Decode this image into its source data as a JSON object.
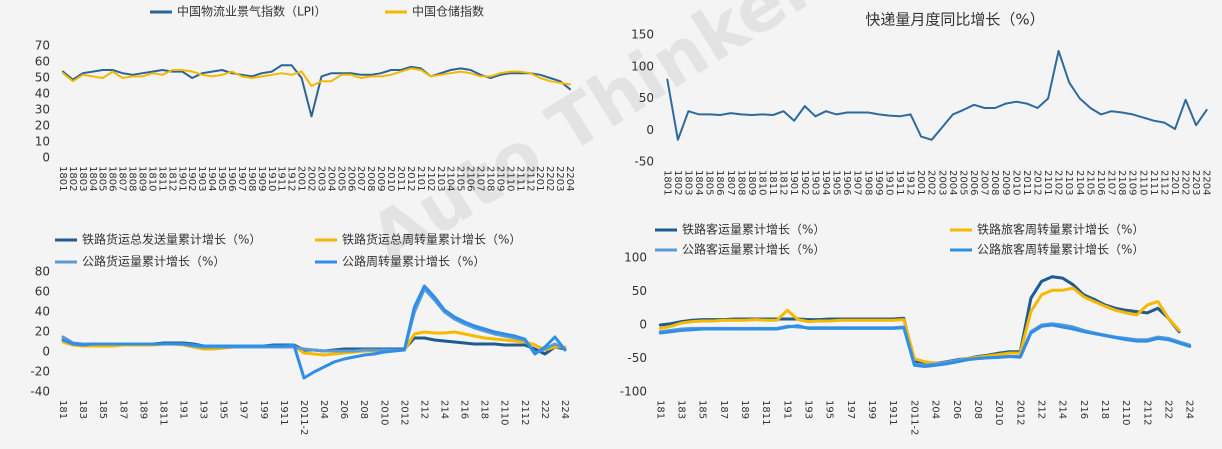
{
  "watermark": "Auto Thinker 汽车智库",
  "chart_data": [
    {
      "type": "line",
      "categories": [
        "1801",
        "1802",
        "1803",
        "1804",
        "1805",
        "1806",
        "1807",
        "1808",
        "1809",
        "1810",
        "1811",
        "1812",
        "1901",
        "1902",
        "1903",
        "1904",
        "1905",
        "1906",
        "1907",
        "1908",
        "1909",
        "1910",
        "1911",
        "1912",
        "2001",
        "2002",
        "2003",
        "2004",
        "2005",
        "2006",
        "2007",
        "2008",
        "2009",
        "2010",
        "2011",
        "2012",
        "2101",
        "2102",
        "2103",
        "2104",
        "2105",
        "2106",
        "2107",
        "2108",
        "2109",
        "2110",
        "2111",
        "2112",
        "2201",
        "2202",
        "2203",
        "2204"
      ],
      "series": [
        {
          "name": "中国物流业景气指数（LPI）",
          "color": "#2a6596",
          "values": [
            54,
            49,
            53,
            54,
            55,
            55,
            53,
            52,
            53,
            54,
            55,
            54,
            54,
            50,
            53,
            54,
            55,
            53,
            52,
            51,
            53,
            54,
            58,
            58,
            50,
            26,
            51,
            53,
            53,
            53,
            52,
            52,
            53,
            55,
            55,
            57,
            56,
            51,
            53,
            55,
            56,
            55,
            52,
            50,
            52,
            53,
            53,
            53,
            52,
            50,
            48,
            43
          ]
        },
        {
          "name": "中国仓储指数",
          "color": "#f5b800",
          "values": [
            53,
            48,
            52,
            51,
            50,
            54,
            50,
            51,
            51,
            53,
            52,
            55,
            55,
            54,
            52,
            51,
            52,
            54,
            51,
            50,
            51,
            52,
            53,
            52,
            54,
            45,
            48,
            48,
            52,
            52,
            50,
            51,
            51,
            52,
            54,
            56,
            55,
            51,
            52,
            53,
            54,
            53,
            51,
            51,
            53,
            54,
            54,
            53,
            50,
            48,
            47,
            46
          ]
        }
      ],
      "ylim": [
        0,
        70
      ],
      "yticks": [
        0,
        10,
        20,
        30,
        40,
        50,
        60,
        70
      ],
      "grid": false
    },
    {
      "type": "line",
      "title": "快递量月度同比增长（%）",
      "categories": [
        "1801",
        "1802",
        "1803",
        "1804",
        "1805",
        "1806",
        "1807",
        "1808",
        "1809",
        "1810",
        "1811",
        "1812",
        "1901",
        "1902",
        "1903",
        "1904",
        "1905",
        "1906",
        "1907",
        "1908",
        "1909",
        "1910",
        "1911",
        "1912",
        "2001",
        "2002",
        "2003",
        "2004",
        "2005",
        "2006",
        "2007",
        "2008",
        "2009",
        "2010",
        "2011",
        "2012",
        "2101",
        "2102",
        "2103",
        "2104",
        "2105",
        "2106",
        "2107",
        "2108",
        "2109",
        "2110",
        "2111",
        "2112",
        "2201",
        "2202",
        "2203",
        "2204"
      ],
      "series": [
        {
          "name": null,
          "color": "#2e6a9e",
          "values": [
            80,
            -15,
            30,
            25,
            25,
            24,
            27,
            25,
            24,
            25,
            24,
            30,
            15,
            38,
            22,
            30,
            25,
            28,
            28,
            28,
            25,
            23,
            22,
            25,
            -10,
            -15,
            5,
            25,
            32,
            40,
            35,
            35,
            42,
            45,
            42,
            35,
            50,
            125,
            75,
            50,
            35,
            25,
            30,
            28,
            25,
            20,
            15,
            12,
            2,
            48,
            8,
            32
          ]
        }
      ],
      "ylim": [
        -50,
        150
      ],
      "yticks": [
        -50,
        0,
        50,
        100,
        150
      ],
      "grid": false
    },
    {
      "type": "line",
      "categories": [
        "181",
        null,
        "183",
        null,
        "185",
        null,
        "187",
        null,
        "189",
        null,
        "1811",
        null,
        "191",
        null,
        "193",
        null,
        "195",
        null,
        "197",
        null,
        "199",
        null,
        "1911",
        null,
        "2011-2",
        null,
        "204",
        null,
        "206",
        null,
        "208",
        null,
        "2010",
        null,
        "2012",
        null,
        "212",
        null,
        "214",
        null,
        "216",
        null,
        "218",
        null,
        "2110",
        null,
        "2112",
        null,
        "222",
        null,
        "224"
      ],
      "series": [
        {
          "name": "铁路货运总发送量累计增长（%）",
          "color": "#1f5b8e",
          "values": [
            12,
            8,
            7,
            7,
            7,
            7,
            8,
            8,
            8,
            8,
            9,
            9,
            9,
            8,
            6,
            6,
            6,
            6,
            6,
            6,
            6,
            7,
            7,
            7,
            2,
            2,
            1,
            2,
            3,
            3,
            3,
            3,
            3,
            3,
            3,
            14,
            14,
            12,
            11,
            10,
            9,
            8,
            8,
            8,
            7,
            7,
            7,
            3,
            -2,
            5,
            3
          ]
        },
        {
          "name": "铁路货运总周转量累计增长（%）",
          "color": "#f7b900",
          "values": [
            10,
            7,
            6,
            6,
            6,
            6,
            7,
            7,
            7,
            7,
            8,
            8,
            7,
            5,
            3,
            3,
            4,
            5,
            5,
            5,
            5,
            6,
            6,
            6,
            -1,
            -2,
            -3,
            -2,
            -1,
            0,
            1,
            1,
            1,
            2,
            2,
            18,
            20,
            19,
            19,
            20,
            18,
            16,
            14,
            13,
            12,
            11,
            10,
            7,
            2,
            5,
            5
          ]
        },
        {
          "name": "公路货运量累计增长（%）",
          "color": "#5b9bd5",
          "values": [
            15,
            9,
            8,
            8,
            8,
            8,
            8,
            8,
            8,
            8,
            8,
            8,
            8,
            6,
            5,
            5,
            5,
            5,
            5,
            5,
            5,
            5,
            5,
            5,
            3,
            2,
            1,
            1,
            1,
            1,
            2,
            2,
            2,
            2,
            2,
            40,
            63,
            52,
            40,
            33,
            28,
            24,
            21,
            18,
            16,
            14,
            12,
            -1,
            3,
            8,
            3
          ]
        },
        {
          "name": "公路周转量累计增长（%）",
          "color": "#2f8fe8",
          "values": [
            12,
            8,
            7,
            8,
            8,
            8,
            8,
            8,
            8,
            8,
            8,
            8,
            8,
            7,
            6,
            6,
            6,
            6,
            6,
            6,
            6,
            6,
            6,
            7,
            -26,
            -20,
            -15,
            -10,
            -7,
            -5,
            -3,
            -2,
            0,
            1,
            2,
            45,
            66,
            55,
            42,
            35,
            30,
            26,
            23,
            20,
            18,
            16,
            13,
            -2,
            5,
            15,
            2
          ]
        }
      ],
      "ylim": [
        -40,
        80
      ],
      "yticks": [
        -40,
        -20,
        0,
        20,
        40,
        60,
        80
      ],
      "grid": false
    },
    {
      "type": "line",
      "categories": [
        "181",
        null,
        "183",
        null,
        "185",
        null,
        "187",
        null,
        "189",
        null,
        "1811",
        null,
        "191",
        null,
        "193",
        null,
        "195",
        null,
        "197",
        null,
        "199",
        null,
        "1911",
        null,
        "2011-2",
        null,
        "204",
        null,
        "206",
        null,
        "208",
        null,
        "2010",
        null,
        "2012",
        null,
        "212",
        null,
        "214",
        null,
        "216",
        null,
        "218",
        null,
        "2110",
        null,
        "2112",
        null,
        "222",
        null,
        "224"
      ],
      "series": [
        {
          "name": "铁路客运量累计增长（%）",
          "color": "#1f5b8e",
          "values": [
            0,
            2,
            5,
            7,
            8,
            8,
            8,
            9,
            9,
            9,
            9,
            9,
            9,
            9,
            8,
            8,
            9,
            9,
            9,
            9,
            9,
            9,
            9,
            10,
            -55,
            -58,
            -57,
            -55,
            -52,
            -50,
            -47,
            -45,
            -42,
            -40,
            -40,
            40,
            65,
            72,
            70,
            60,
            45,
            38,
            30,
            25,
            22,
            20,
            18,
            25,
            10,
            -10,
            null
          ]
        },
        {
          "name": "铁路旅客周转量累计增长（%）",
          "color": "#f7b900",
          "values": [
            -5,
            -2,
            3,
            5,
            6,
            6,
            7,
            7,
            7,
            8,
            7,
            7,
            22,
            8,
            5,
            6,
            6,
            7,
            7,
            7,
            7,
            7,
            7,
            8,
            -50,
            -55,
            -57,
            -56,
            -53,
            -50,
            -48,
            -46,
            -44,
            -42,
            -42,
            20,
            45,
            52,
            52,
            55,
            42,
            35,
            28,
            22,
            18,
            15,
            30,
            35,
            10,
            -8,
            null
          ]
        },
        {
          "name": "公路客运量累计增长（%）",
          "color": "#5b9bd5",
          "values": [
            -10,
            -8,
            -6,
            -5,
            -5,
            -5,
            -5,
            -5,
            -5,
            -5,
            -5,
            -5,
            -2,
            -3,
            -4,
            -4,
            -4,
            -4,
            -4,
            -4,
            -4,
            -4,
            -4,
            -3,
            -58,
            -60,
            -58,
            -56,
            -53,
            -51,
            -50,
            -49,
            -48,
            -47,
            -47,
            -10,
            0,
            2,
            0,
            -3,
            -8,
            -12,
            -15,
            -18,
            -20,
            -22,
            -22,
            -18,
            -20,
            -25,
            -30
          ]
        },
        {
          "name": "公路旅客周转量累计增长（%）",
          "color": "#2f8fe8",
          "values": [
            -12,
            -10,
            -8,
            -7,
            -6,
            -6,
            -6,
            -6,
            -6,
            -6,
            -6,
            -6,
            -3,
            -1,
            -5,
            -5,
            -5,
            -5,
            -5,
            -5,
            -5,
            -5,
            -5,
            -4,
            -60,
            -62,
            -60,
            -58,
            -55,
            -52,
            -50,
            -49,
            -48,
            -47,
            -48,
            -12,
            -2,
            0,
            -3,
            -6,
            -10,
            -13,
            -16,
            -19,
            -22,
            -24,
            -24,
            -20,
            -22,
            -27,
            -32
          ]
        }
      ],
      "ylim": [
        -100,
        100
      ],
      "yticks": [
        -100,
        -50,
        0,
        50,
        100
      ],
      "grid": false
    }
  ]
}
